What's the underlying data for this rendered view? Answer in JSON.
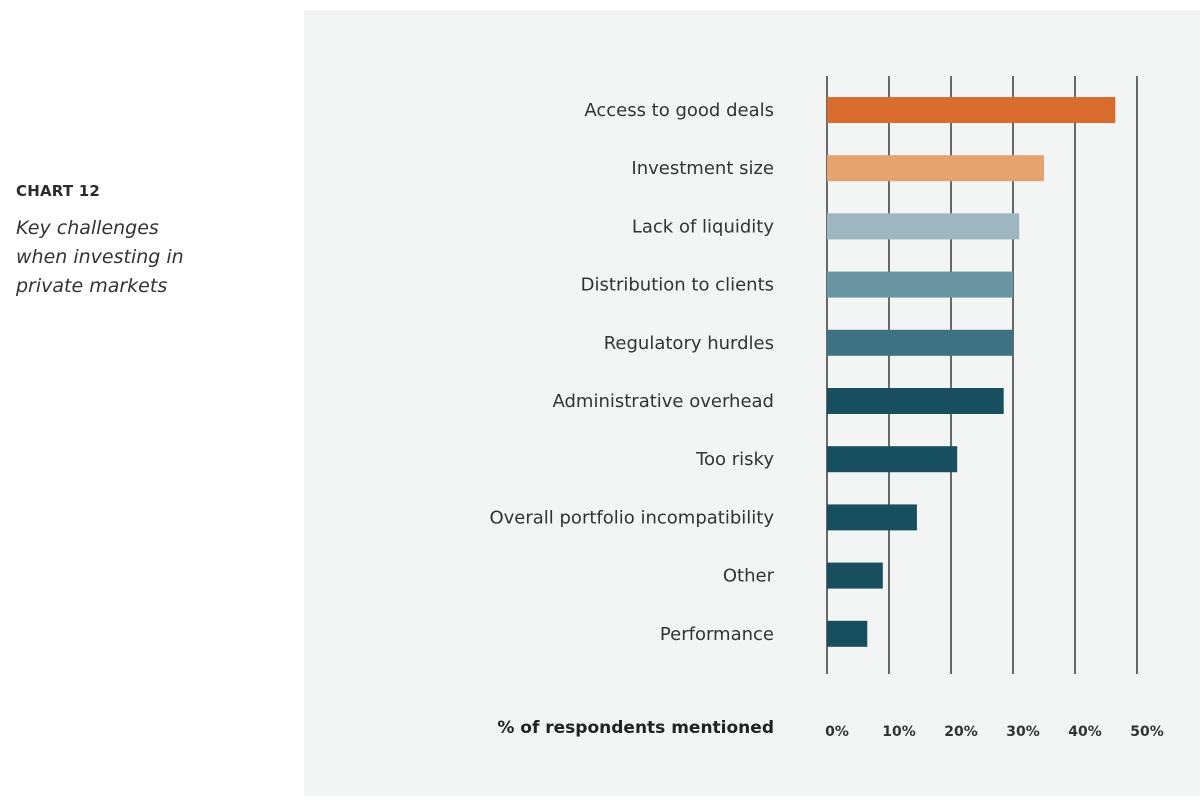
{
  "header": {
    "chart_number": "CHART 12",
    "chart_title": "Key challenges when investing in private markets"
  },
  "chart_data": {
    "type": "bar",
    "orientation": "horizontal",
    "title": "Key challenges when investing in private markets",
    "xlabel": "% of respondents mentioned",
    "ylabel": "",
    "xlim": [
      0,
      50
    ],
    "xticks": [
      0,
      10,
      20,
      30,
      40,
      50
    ],
    "xtick_labels": [
      "0%",
      "10%",
      "20%",
      "30%",
      "40%",
      "50%"
    ],
    "grid": "vertical",
    "categories": [
      "Access to good deals",
      "Investment size",
      "Lack of liquidity",
      "Distribution to clients",
      "Regulatory hurdles",
      "Administrative overhead",
      "Too risky",
      "Overall portfolio incompatibility",
      "Other",
      "Performance"
    ],
    "values": [
      46.5,
      35,
      31,
      30,
      30,
      28.5,
      21,
      14.5,
      9,
      6.5
    ],
    "colors": [
      "#d86c2c",
      "#e5a370",
      "#9db6c0",
      "#6b95a2",
      "#3d7282",
      "#174f5f",
      "#174f5f",
      "#174f5f",
      "#174f5f",
      "#174f5f"
    ],
    "gridline_color": "#3a3a3a"
  }
}
